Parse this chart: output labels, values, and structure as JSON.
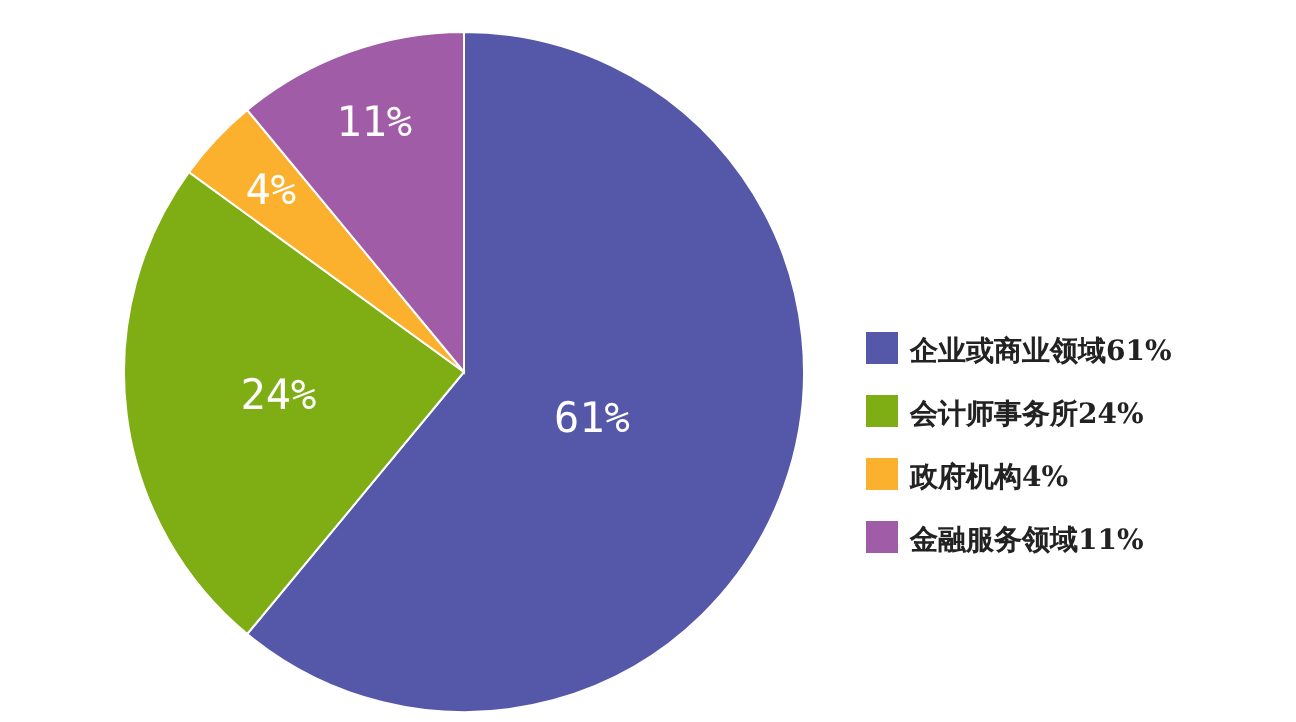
{
  "chart_data": {
    "type": "pie",
    "categories": [
      "企业或商业领域61%",
      "会计师事务所24%",
      "政府机构4%",
      "金融服务领域11%"
    ],
    "values": [
      61,
      24,
      4,
      11
    ],
    "colors": [
      "#5558a8",
      "#7fad14",
      "#fbb12e",
      "#a05ca6"
    ],
    "value_labels": [
      "61%",
      "24%",
      "4%",
      "11%"
    ],
    "legend": "right"
  }
}
